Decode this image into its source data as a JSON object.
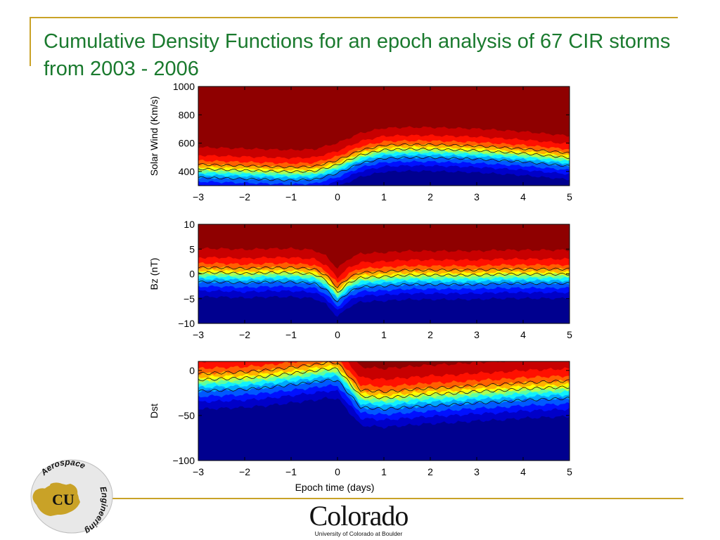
{
  "slide": {
    "title": "Cumulative Density Functions for an epoch analysis of 67 CIR storms from 2003 - 2006",
    "logo_left_text": "Aerospace Engineering",
    "logo_left_mark": "CU",
    "logo_right_word": "Colorado",
    "logo_right_sub": "University of Colorado at Boulder",
    "colors": {
      "title": "#1a7a2e",
      "rule": "#c9a227"
    }
  },
  "chart_data": [
    {
      "type": "heatmap",
      "title": "",
      "xlabel": "",
      "ylabel": "Solar Wind (Km/s)",
      "xlim": [
        -3,
        5
      ],
      "ylim": [
        300,
        1000
      ],
      "xticks": [
        -3,
        -2,
        -1,
        0,
        1,
        2,
        3,
        4,
        5
      ],
      "yticks": [
        400,
        600,
        800,
        1000
      ],
      "epoch_days": [
        -3,
        -2.5,
        -2,
        -1.5,
        -1,
        -0.5,
        0,
        0.5,
        1,
        1.5,
        2,
        2.5,
        3,
        3.5,
        4,
        4.5,
        5
      ],
      "median": [
        410,
        405,
        400,
        395,
        390,
        395,
        440,
        510,
        545,
        550,
        550,
        545,
        540,
        530,
        520,
        505,
        490
      ],
      "band_width": 95,
      "colormap": "jet"
    },
    {
      "type": "heatmap",
      "title": "",
      "xlabel": "",
      "ylabel": "Bz (nT)",
      "xlim": [
        -3,
        5
      ],
      "ylim": [
        -10,
        10
      ],
      "xticks": [
        -3,
        -2,
        -1,
        0,
        1,
        2,
        3,
        4,
        5
      ],
      "yticks": [
        -10,
        -5,
        0,
        5,
        10
      ],
      "epoch_days": [
        -3,
        -2.5,
        -2,
        -1.5,
        -1,
        -0.5,
        -0.25,
        0,
        0.25,
        0.5,
        1,
        1.5,
        2,
        2.5,
        3,
        3.5,
        4,
        4.5,
        5
      ],
      "median": [
        0,
        0,
        -0.2,
        0,
        0,
        -0.3,
        -1.5,
        -4,
        -2,
        -1,
        -0.8,
        -0.5,
        -0.5,
        -0.5,
        -0.5,
        -0.3,
        -0.3,
        -0.3,
        -0.3
      ],
      "band_width": 3,
      "colormap": "jet"
    },
    {
      "type": "heatmap",
      "title": "",
      "xlabel": "Epoch time (days)",
      "ylabel": "Dst",
      "xlim": [
        -3,
        5
      ],
      "ylim": [
        -100,
        10
      ],
      "xticks": [
        -3,
        -2,
        -1,
        0,
        1,
        2,
        3,
        4,
        5
      ],
      "yticks": [
        -100,
        -50,
        0
      ],
      "epoch_days": [
        -3,
        -2.5,
        -2,
        -1.5,
        -1,
        -0.5,
        -0.25,
        0,
        0.25,
        0.5,
        1,
        1.5,
        2,
        2.5,
        3,
        3.5,
        4,
        4.5,
        5
      ],
      "median": [
        -12,
        -11,
        -10,
        -8,
        -5,
        -2,
        0,
        0,
        -15,
        -30,
        -32,
        -30,
        -28,
        -27,
        -25,
        -24,
        -22,
        -21,
        -20
      ],
      "band_width": 20,
      "colormap": "jet"
    }
  ]
}
